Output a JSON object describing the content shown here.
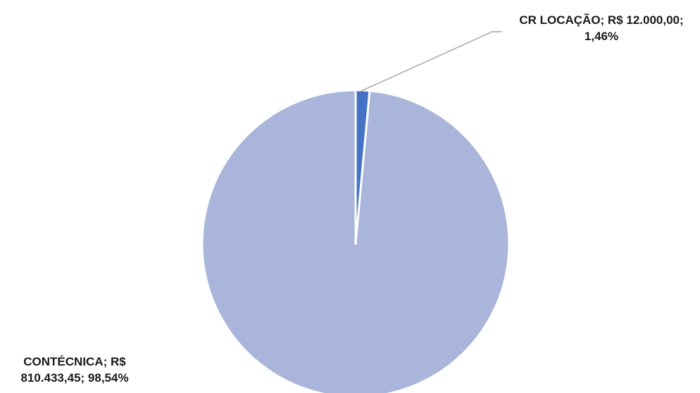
{
  "chart_data": {
    "type": "pie",
    "title": "",
    "slices": [
      {
        "category": "CR LOCAÇÃO",
        "value": 12000.0,
        "percent": 1.46,
        "label_lines": [
          "CR LOCAÇÃO; R$ 12.000,00;",
          "1,46%"
        ],
        "color": "#4472C4"
      },
      {
        "category": "CONTÉCNICA",
        "value": 810433.45,
        "percent": 98.54,
        "label_lines": [
          "CONTÉCNICA; R$",
          "810.433,45; 98,54%"
        ],
        "color": "#A9B5DA"
      }
    ],
    "legend": "none",
    "start_angle": "top",
    "direction": "clockwise",
    "leader_line_color": "#A6A6A6"
  }
}
